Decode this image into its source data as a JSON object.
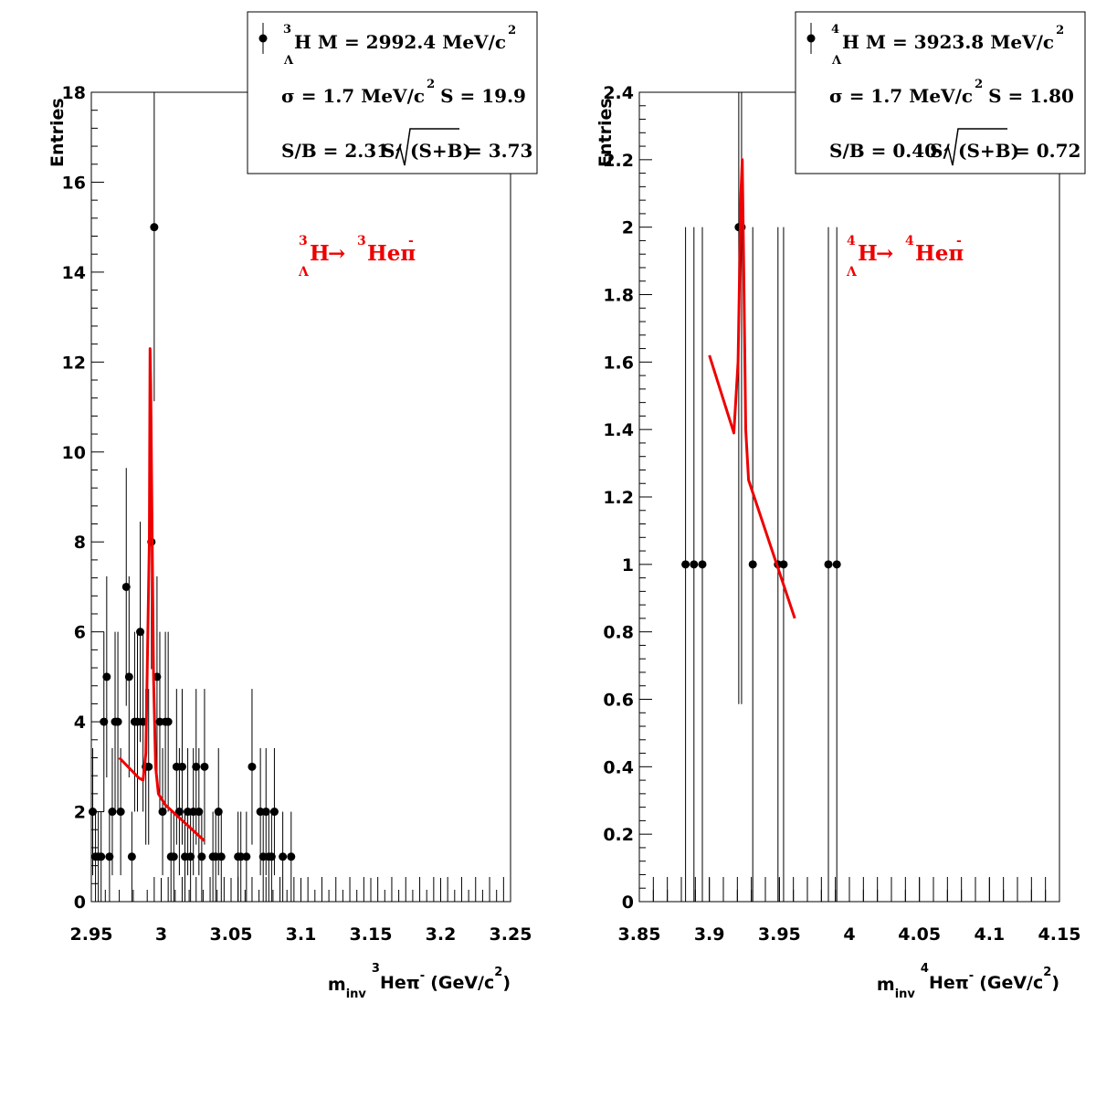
{
  "chart_data": [
    {
      "type": "scatter",
      "ylabel": "Entries",
      "xlabel_parts": {
        "m": "m",
        "inv": "inv",
        "nuc": "3",
        "he": "He",
        "pi": "π",
        "minus": "-",
        "unit": "(GeV/c",
        "exp": "2",
        "close": ")"
      },
      "xlim": [
        2.95,
        3.25
      ],
      "ylim": [
        0,
        18
      ],
      "xticks": [
        "2.95",
        "3",
        "3.05",
        "3.1",
        "3.15",
        "3.2",
        "3.25"
      ],
      "yticks": [
        "0",
        "2",
        "4",
        "6",
        "8",
        "10",
        "12",
        "14",
        "16",
        "18"
      ],
      "legend": {
        "mass_nuc": "3",
        "mass_lambda": "Λ",
        "mass_text": "H M = 2992.4 MeV/c",
        "mass_exp": "2",
        "sigma_text": "σ = 1.7 MeV/c",
        "sigma_exp": "2",
        "s_text": "S = 19.9",
        "sb_text": "S/B = 2.31",
        "sig_pre": "S/",
        "sig_inner": "(S+B)",
        "sig_val": "= 3.73"
      },
      "annotation": {
        "nuc1": "3",
        "lambda": "Λ",
        "h": "H",
        "arrow": "→",
        "nuc2": "3",
        "hepi": "Heπ",
        "minus": "-"
      },
      "points": [
        {
          "x": 2.951,
          "y": 2
        },
        {
          "x": 2.953,
          "y": 1
        },
        {
          "x": 2.955,
          "y": 1
        },
        {
          "x": 2.957,
          "y": 1
        },
        {
          "x": 2.959,
          "y": 4
        },
        {
          "x": 2.961,
          "y": 5
        },
        {
          "x": 2.963,
          "y": 1
        },
        {
          "x": 2.965,
          "y": 2
        },
        {
          "x": 2.967,
          "y": 4
        },
        {
          "x": 2.969,
          "y": 4
        },
        {
          "x": 2.971,
          "y": 2
        },
        {
          "x": 2.975,
          "y": 7
        },
        {
          "x": 2.977,
          "y": 5
        },
        {
          "x": 2.979,
          "y": 1
        },
        {
          "x": 2.981,
          "y": 4
        },
        {
          "x": 2.983,
          "y": 4
        },
        {
          "x": 2.985,
          "y": 6
        },
        {
          "x": 2.987,
          "y": 4
        },
        {
          "x": 2.989,
          "y": 3
        },
        {
          "x": 2.991,
          "y": 3
        },
        {
          "x": 2.993,
          "y": 8
        },
        {
          "x": 2.995,
          "y": 15
        },
        {
          "x": 2.997,
          "y": 5
        },
        {
          "x": 2.999,
          "y": 4
        },
        {
          "x": 3.001,
          "y": 2
        },
        {
          "x": 3.003,
          "y": 4
        },
        {
          "x": 3.005,
          "y": 4
        },
        {
          "x": 3.007,
          "y": 1
        },
        {
          "x": 3.009,
          "y": 1
        },
        {
          "x": 3.011,
          "y": 3
        },
        {
          "x": 3.013,
          "y": 2
        },
        {
          "x": 3.015,
          "y": 3
        },
        {
          "x": 3.017,
          "y": 1
        },
        {
          "x": 3.019,
          "y": 2
        },
        {
          "x": 3.021,
          "y": 1
        },
        {
          "x": 3.023,
          "y": 2
        },
        {
          "x": 3.025,
          "y": 3
        },
        {
          "x": 3.027,
          "y": 2
        },
        {
          "x": 3.029,
          "y": 1
        },
        {
          "x": 3.031,
          "y": 3
        },
        {
          "x": 3.037,
          "y": 1
        },
        {
          "x": 3.039,
          "y": 1
        },
        {
          "x": 3.041,
          "y": 2
        },
        {
          "x": 3.043,
          "y": 1
        },
        {
          "x": 3.055,
          "y": 1
        },
        {
          "x": 3.057,
          "y": 1
        },
        {
          "x": 3.061,
          "y": 1
        },
        {
          "x": 3.065,
          "y": 3
        },
        {
          "x": 3.071,
          "y": 2
        },
        {
          "x": 3.073,
          "y": 1
        },
        {
          "x": 3.075,
          "y": 2
        },
        {
          "x": 3.077,
          "y": 1
        },
        {
          "x": 3.079,
          "y": 1
        },
        {
          "x": 3.081,
          "y": 2
        },
        {
          "x": 3.087,
          "y": 1
        },
        {
          "x": 3.093,
          "y": 1
        }
      ],
      "zero_bins": [
        2.995,
        3.005,
        3.015,
        3.025,
        3.035,
        3.045,
        3.055,
        3.065,
        3.075,
        3.085,
        3.095,
        3.105,
        3.115,
        3.125,
        3.135,
        3.145,
        3.155,
        3.165,
        3.175,
        3.185,
        3.195,
        3.205,
        3.215,
        3.225,
        3.235,
        3.245
      ],
      "fit": [
        {
          "x": 2.97,
          "y": 3.2
        },
        {
          "x": 2.984,
          "y": 2.75
        },
        {
          "x": 2.987,
          "y": 2.7
        },
        {
          "x": 2.989,
          "y": 3.3
        },
        {
          "x": 2.9915,
          "y": 8
        },
        {
          "x": 2.992,
          "y": 12.3
        },
        {
          "x": 2.9925,
          "y": 11.5
        },
        {
          "x": 2.9945,
          "y": 5
        },
        {
          "x": 2.996,
          "y": 3.0
        },
        {
          "x": 2.998,
          "y": 2.4
        },
        {
          "x": 3.003,
          "y": 2.15
        },
        {
          "x": 3.031,
          "y": 1.35
        }
      ]
    },
    {
      "type": "scatter",
      "ylabel": "Entries",
      "xlabel_parts": {
        "m": "m",
        "inv": "inv",
        "nuc": "4",
        "he": "He",
        "pi": "π",
        "minus": "-",
        "unit": "(GeV/c",
        "exp": "2",
        "close": ")"
      },
      "xlim": [
        3.85,
        4.15
      ],
      "ylim": [
        0,
        2.4
      ],
      "xticks": [
        "3.85",
        "3.9",
        "3.95",
        "4",
        "4.05",
        "4.1",
        "4.15"
      ],
      "yticks": [
        "0",
        "0.2",
        "0.4",
        "0.6",
        "0.8",
        "1",
        "1.2",
        "1.4",
        "1.6",
        "1.8",
        "2",
        "2.2",
        "2.4"
      ],
      "legend": {
        "mass_nuc": "4",
        "mass_lambda": "Λ",
        "mass_text": "H M = 3923.8 MeV/c",
        "mass_exp": "2",
        "sigma_text": "σ = 1.7 MeV/c",
        "sigma_exp": "2",
        "s_text": "S = 1.80",
        "sb_text": "S/B = 0.40",
        "sig_pre": "S/",
        "sig_inner": "(S+B)",
        "sig_val": "= 0.72"
      },
      "annotation": {
        "nuc1": "4",
        "lambda": "Λ",
        "h": "H",
        "arrow": "→",
        "nuc2": "4",
        "hepi": "Heπ",
        "minus": "-"
      },
      "points": [
        {
          "x": 3.883,
          "y": 1
        },
        {
          "x": 3.889,
          "y": 1
        },
        {
          "x": 3.895,
          "y": 1
        },
        {
          "x": 3.921,
          "y": 2
        },
        {
          "x": 3.923,
          "y": 2
        },
        {
          "x": 3.931,
          "y": 1
        },
        {
          "x": 3.949,
          "y": 1
        },
        {
          "x": 3.953,
          "y": 1
        },
        {
          "x": 3.985,
          "y": 1
        },
        {
          "x": 3.991,
          "y": 1
        }
      ],
      "zero_bins": [
        3.85,
        3.86,
        3.87,
        3.88,
        3.89,
        3.9,
        3.91,
        3.92,
        3.93,
        3.94,
        3.95,
        3.96,
        3.97,
        3.98,
        3.99,
        4.0,
        4.01,
        4.02,
        4.03,
        4.04,
        4.05,
        4.06,
        4.07,
        4.08,
        4.09,
        4.1,
        4.11,
        4.12,
        4.13,
        4.14
      ],
      "fit": [
        {
          "x": 3.9,
          "y": 1.62
        },
        {
          "x": 3.9175,
          "y": 1.39
        },
        {
          "x": 3.9205,
          "y": 1.6
        },
        {
          "x": 3.9225,
          "y": 2.1
        },
        {
          "x": 3.9235,
          "y": 2.2
        },
        {
          "x": 3.9245,
          "y": 1.9
        },
        {
          "x": 3.926,
          "y": 1.4
        },
        {
          "x": 3.928,
          "y": 1.25
        },
        {
          "x": 3.961,
          "y": 0.84
        }
      ]
    }
  ]
}
